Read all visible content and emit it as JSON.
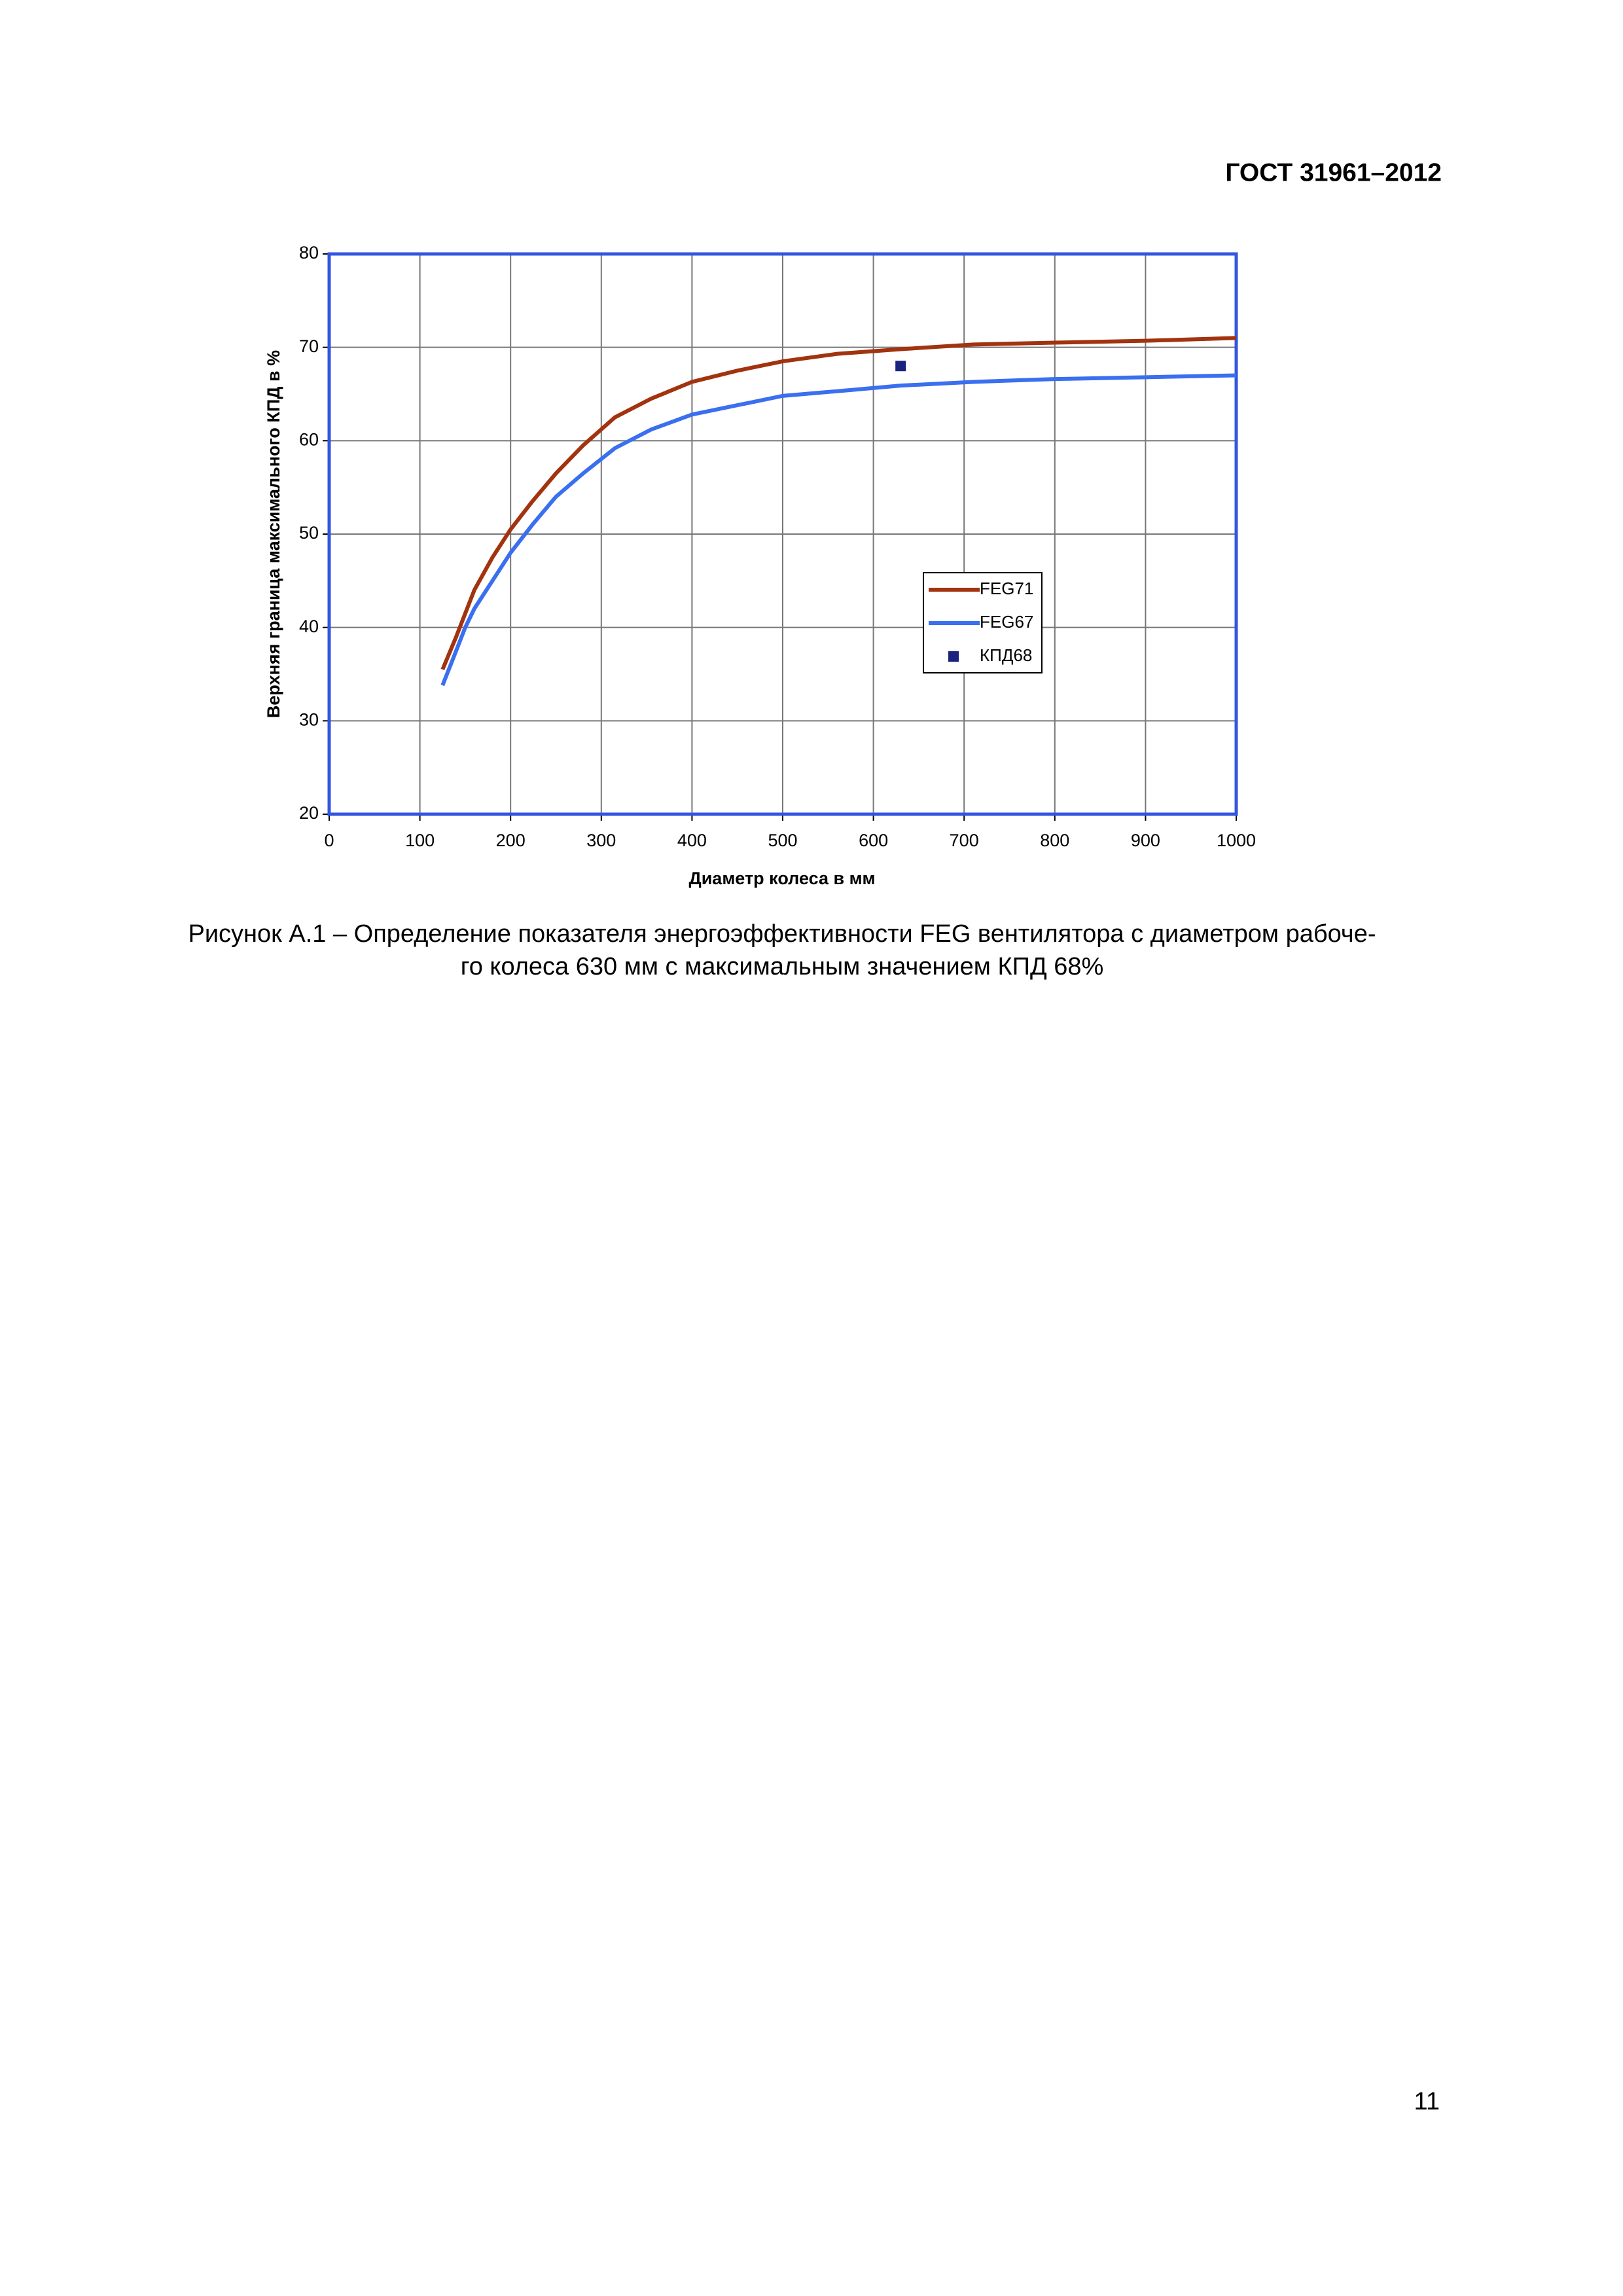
{
  "header": "ГОСТ 31961–2012",
  "caption": [
    "Рисунок А.1 – Определение показателя энергоэффективности FEG вентилятора с диаметром рабоче-",
    "го колеса 630 мм с максимальным значением КПД 68%"
  ],
  "page_number": "11",
  "chart_data": {
    "type": "line",
    "x_label": "Диаметр колеса в мм",
    "y_label": "Верхняя граница максимального КПД в %",
    "xlim": [
      0,
      1000
    ],
    "xticks": [
      0,
      100,
      200,
      300,
      400,
      500,
      600,
      700,
      800,
      900,
      1000
    ],
    "ylim": [
      20,
      80
    ],
    "yticks": [
      20,
      30,
      40,
      50,
      60,
      70,
      80
    ],
    "grid": true,
    "legend": "right",
    "series": [
      {
        "name": "FEG71",
        "color": "#a2330f",
        "style": "line",
        "x": [
          125,
          140,
          150,
          160,
          180,
          200,
          224,
          250,
          280,
          315,
          355,
          400,
          450,
          500,
          560,
          630,
          710,
          800,
          900,
          1000
        ],
        "values": [
          35.5,
          39,
          41.5,
          44,
          47.5,
          50.5,
          53.5,
          56.5,
          59.5,
          62.5,
          64.5,
          66.3,
          67.5,
          68.5,
          69.3,
          69.8,
          70.3,
          70.5,
          70.7,
          71
        ]
      },
      {
        "name": "FEG67",
        "color": "#3a6ff0",
        "style": "line",
        "x": [
          125,
          140,
          150,
          160,
          180,
          200,
          224,
          250,
          280,
          315,
          355,
          400,
          450,
          500,
          560,
          630,
          710,
          800,
          900,
          1000
        ],
        "values": [
          33.8,
          37.5,
          40,
          42,
          45,
          48,
          51,
          54,
          56.5,
          59.2,
          61.2,
          62.8,
          63.8,
          64.8,
          65.3,
          65.9,
          66.3,
          66.6,
          66.8,
          67
        ]
      },
      {
        "name": "КПД68",
        "color": "#1a237e",
        "style": "marker",
        "x": [
          630
        ],
        "values": [
          68
        ]
      }
    ]
  }
}
